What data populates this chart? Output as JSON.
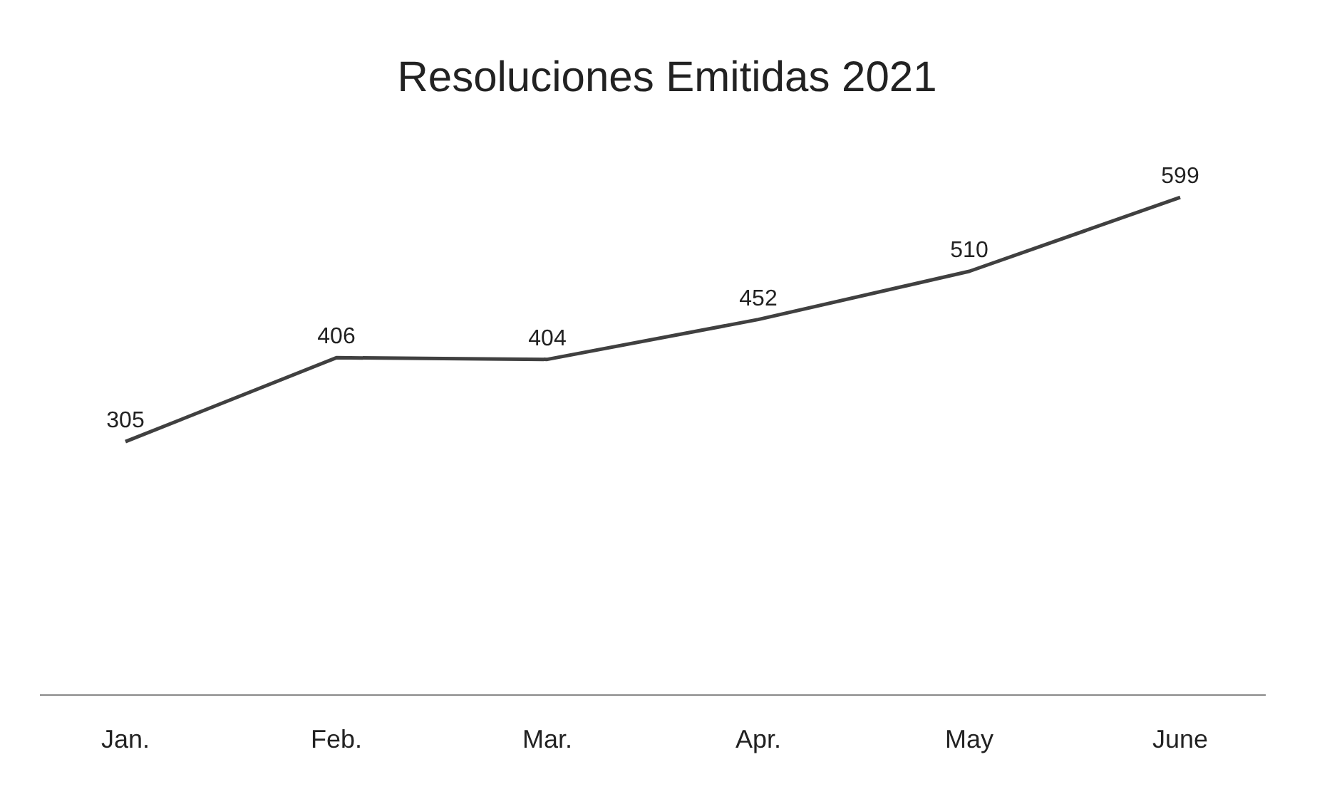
{
  "chart_data": {
    "type": "line",
    "title": "Resoluciones Emitidas 2021",
    "categories": [
      "Jan.",
      "Feb.",
      "Mar.",
      "Apr.",
      "May",
      "June"
    ],
    "series": [
      {
        "color": "#404040",
        "values": [
          305,
          406,
          404,
          452,
          510,
          599
        ]
      }
    ],
    "data_labels": true,
    "marker": "none",
    "grid": false
  }
}
